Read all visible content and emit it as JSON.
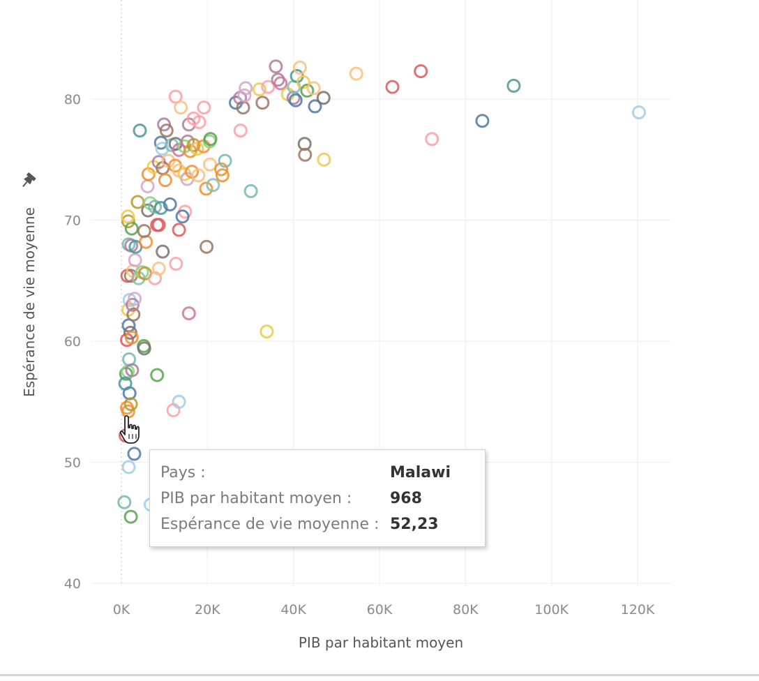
{
  "chart_data": {
    "type": "scatter",
    "marker": "open-circle",
    "xlabel": "PIB par habitant moyen",
    "ylabel": "Espérance de vie moyenne",
    "xlim": [
      0,
      128000
    ],
    "ylim": [
      40,
      87
    ],
    "x_ticks": [
      0,
      20000,
      40000,
      60000,
      80000,
      100000,
      120000
    ],
    "x_tick_labels": [
      "0K",
      "20K",
      "40K",
      "60K",
      "80K",
      "100K",
      "120K"
    ],
    "y_ticks": [
      40,
      50,
      60,
      70,
      80
    ],
    "y_tick_labels": [
      "40",
      "50",
      "60",
      "70",
      "80"
    ],
    "grid": true,
    "legend": "none",
    "colors": [
      "#4e79a7",
      "#f28e2b",
      "#e15759",
      "#76b7b2",
      "#59a14f",
      "#edc948",
      "#b07aa1",
      "#ff9da7",
      "#9c755f",
      "#a0cbe8",
      "#ffbe7d",
      "#8cd17d",
      "#499894",
      "#86bcb6",
      "#d37295",
      "#b6992d",
      "#79706e",
      "#d4a6c8"
    ],
    "points": [
      [
        968,
        52.2,
        2
      ],
      [
        1300,
        54.5,
        1
      ],
      [
        1600,
        54.2,
        1
      ],
      [
        1900,
        55.7,
        0
      ],
      [
        2200,
        54.8,
        15
      ],
      [
        1100,
        57.3,
        4
      ],
      [
        1500,
        57.5,
        11
      ],
      [
        1800,
        58.5,
        3
      ],
      [
        900,
        56.5,
        12
      ],
      [
        2500,
        57.6,
        6
      ],
      [
        1300,
        60.1,
        2
      ],
      [
        1700,
        61.3,
        0
      ],
      [
        2100,
        60.7,
        16
      ],
      [
        2400,
        60.3,
        1
      ],
      [
        1600,
        62.6,
        5
      ],
      [
        2800,
        62.2,
        8
      ],
      [
        1900,
        63.4,
        9
      ],
      [
        2600,
        63.0,
        6
      ],
      [
        3100,
        63.5,
        17
      ],
      [
        5200,
        59.6,
        4
      ],
      [
        5300,
        59.4,
        16
      ],
      [
        8300,
        57.2,
        4
      ],
      [
        1400,
        65.4,
        2
      ],
      [
        2200,
        65.4,
        8
      ],
      [
        2700,
        65.8,
        10
      ],
      [
        4000,
        65.2,
        13
      ],
      [
        4800,
        65.7,
        11
      ],
      [
        5500,
        65.6,
        15
      ],
      [
        7800,
        65.2,
        7
      ],
      [
        8700,
        66.0,
        10
      ],
      [
        12700,
        66.4,
        7
      ],
      [
        3200,
        66.7,
        17
      ],
      [
        1700,
        68.0,
        3
      ],
      [
        2300,
        67.9,
        6
      ],
      [
        3300,
        67.8,
        12
      ],
      [
        5700,
        68.2,
        1
      ],
      [
        9600,
        67.4,
        16
      ],
      [
        19800,
        67.8,
        8
      ],
      [
        1600,
        69.9,
        15
      ],
      [
        2400,
        69.3,
        4
      ],
      [
        1500,
        70.3,
        5
      ],
      [
        5300,
        69.1,
        8
      ],
      [
        8300,
        69.6,
        2
      ],
      [
        8700,
        69.6,
        2
      ],
      [
        13400,
        69.2,
        2
      ],
      [
        6200,
        70.8,
        16
      ],
      [
        3800,
        71.5,
        15
      ],
      [
        6700,
        71.4,
        11
      ],
      [
        7800,
        71.1,
        3
      ],
      [
        9200,
        71.0,
        12
      ],
      [
        11300,
        71.3,
        0
      ],
      [
        14800,
        70.7,
        7
      ],
      [
        14200,
        70.3,
        0
      ],
      [
        6100,
        72.8,
        17
      ],
      [
        6300,
        73.8,
        1
      ],
      [
        7500,
        74.4,
        5
      ],
      [
        8700,
        74.8,
        6
      ],
      [
        9600,
        74.3,
        8
      ],
      [
        10200,
        73.3,
        1
      ],
      [
        10900,
        74.9,
        10
      ],
      [
        12500,
        74.5,
        1
      ],
      [
        13400,
        74.1,
        10
      ],
      [
        14700,
        73.8,
        5
      ],
      [
        15300,
        73.4,
        17
      ],
      [
        16400,
        74.0,
        1
      ],
      [
        17900,
        73.7,
        10
      ],
      [
        19700,
        72.6,
        1
      ],
      [
        20600,
        74.6,
        10
      ],
      [
        21300,
        72.9,
        13
      ],
      [
        23200,
        74.2,
        1
      ],
      [
        23500,
        73.7,
        1
      ],
      [
        24100,
        74.9,
        3
      ],
      [
        30100,
        72.4,
        3
      ],
      [
        4300,
        77.4,
        12
      ],
      [
        9200,
        76.4,
        0
      ],
      [
        9500,
        75.9,
        9
      ],
      [
        9900,
        77.9,
        6
      ],
      [
        10500,
        77.4,
        8
      ],
      [
        11700,
        76.2,
        13
      ],
      [
        12600,
        76.3,
        16
      ],
      [
        13400,
        75.8,
        14
      ],
      [
        14700,
        76.1,
        11
      ],
      [
        15400,
        76.5,
        6
      ],
      [
        16000,
        75.7,
        1
      ],
      [
        16800,
        76.2,
        15
      ],
      [
        17600,
        75.9,
        5
      ],
      [
        19100,
        76.1,
        1
      ],
      [
        20500,
        76.5,
        11
      ],
      [
        20700,
        76.7,
        4
      ],
      [
        15700,
        77.9,
        6
      ],
      [
        16800,
        78.4,
        7
      ],
      [
        18100,
        78.1,
        7
      ],
      [
        19200,
        79.3,
        7
      ],
      [
        12600,
        80.2,
        7
      ],
      [
        13800,
        79.3,
        10
      ],
      [
        27700,
        77.4,
        7
      ],
      [
        26600,
        79.7,
        0
      ],
      [
        27600,
        80.1,
        6
      ],
      [
        28300,
        79.3,
        8
      ],
      [
        28600,
        80.3,
        17
      ],
      [
        28900,
        80.9,
        17
      ],
      [
        32800,
        79.7,
        8
      ],
      [
        32100,
        80.8,
        5
      ],
      [
        34100,
        81.0,
        7
      ],
      [
        35900,
        82.7,
        6
      ],
      [
        36400,
        81.6,
        6
      ],
      [
        37000,
        81.3,
        14
      ],
      [
        38700,
        80.4,
        5
      ],
      [
        40000,
        80.1,
        6
      ],
      [
        40500,
        79.9,
        0
      ],
      [
        40100,
        81.0,
        13
      ],
      [
        40800,
        81.9,
        12
      ],
      [
        41500,
        82.6,
        10
      ],
      [
        42300,
        81.4,
        5
      ],
      [
        43200,
        80.7,
        4
      ],
      [
        44700,
        80.9,
        10
      ],
      [
        45000,
        79.4,
        0
      ],
      [
        47000,
        80.1,
        16
      ],
      [
        42600,
        76.3,
        16
      ],
      [
        42700,
        75.4,
        8
      ],
      [
        47100,
        75.0,
        5
      ],
      [
        54600,
        82.1,
        10
      ],
      [
        63000,
        81.0,
        2
      ],
      [
        69600,
        82.3,
        2
      ],
      [
        72200,
        76.7,
        7
      ],
      [
        83900,
        78.2,
        0
      ],
      [
        91200,
        81.1,
        12
      ],
      [
        120300,
        78.9,
        9
      ],
      [
        15700,
        62.3,
        14
      ],
      [
        33800,
        60.8,
        5
      ],
      [
        12100,
        54.3,
        7
      ],
      [
        13400,
        55.0,
        9
      ],
      [
        1700,
        49.6,
        9
      ],
      [
        3000,
        50.7,
        0
      ],
      [
        700,
        46.7,
        3
      ],
      [
        2200,
        45.5,
        4
      ],
      [
        6800,
        46.5,
        9
      ]
    ]
  },
  "tooltip": {
    "rows": [
      {
        "label": "Pays :",
        "value": "Malawi"
      },
      {
        "label": "PIB par habitant moyen :",
        "value": "968"
      },
      {
        "label": "Espérance de vie moyenne :",
        "value": "52,23"
      }
    ]
  }
}
